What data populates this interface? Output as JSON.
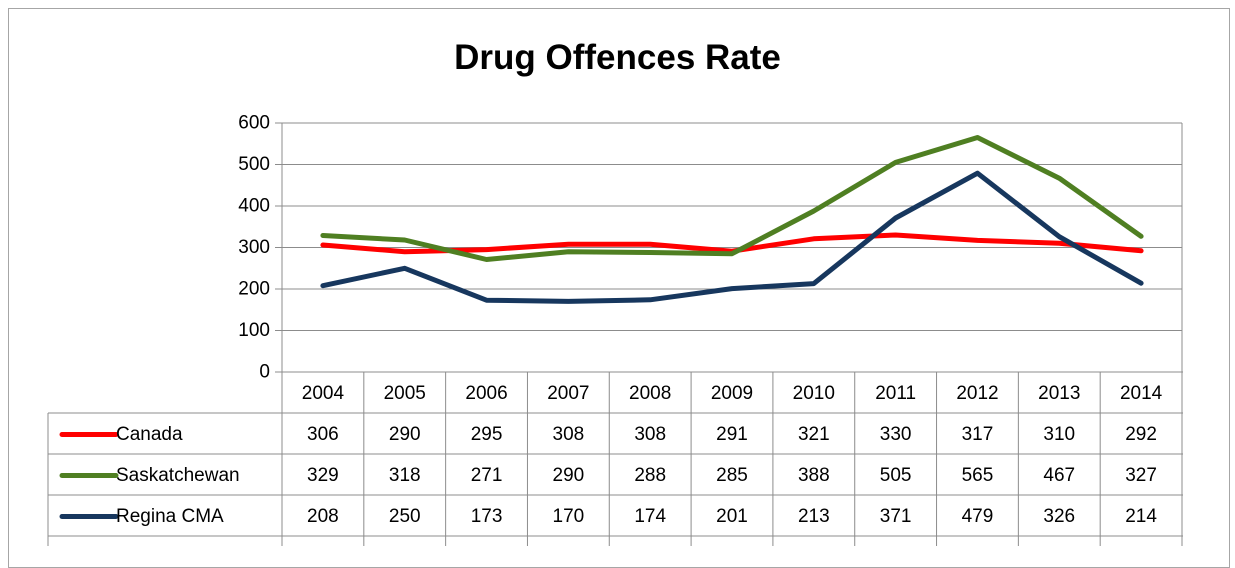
{
  "chart_data": {
    "type": "line",
    "title": "Drug Offences Rate",
    "xlabel": "",
    "ylabel": "",
    "categories": [
      "2004",
      "2005",
      "2006",
      "2007",
      "2008",
      "2009",
      "2010",
      "2011",
      "2012",
      "2013",
      "2014"
    ],
    "series": [
      {
        "name": "Canada",
        "color": "#ff0000",
        "values": [
          306,
          290,
          295,
          308,
          308,
          291,
          321,
          330,
          317,
          310,
          292
        ]
      },
      {
        "name": "Saskatchewan",
        "color": "#4f7f22",
        "values": [
          329,
          318,
          271,
          290,
          288,
          285,
          388,
          505,
          565,
          467,
          327
        ]
      },
      {
        "name": "Regina CMA",
        "color": "#17375e",
        "values": [
          208,
          250,
          173,
          170,
          174,
          201,
          213,
          371,
          479,
          326,
          214
        ]
      }
    ],
    "ylim": [
      0,
      600
    ],
    "yticks": [
      0,
      100,
      200,
      300,
      400,
      500,
      600
    ],
    "grid": true,
    "legend": "data-table"
  }
}
